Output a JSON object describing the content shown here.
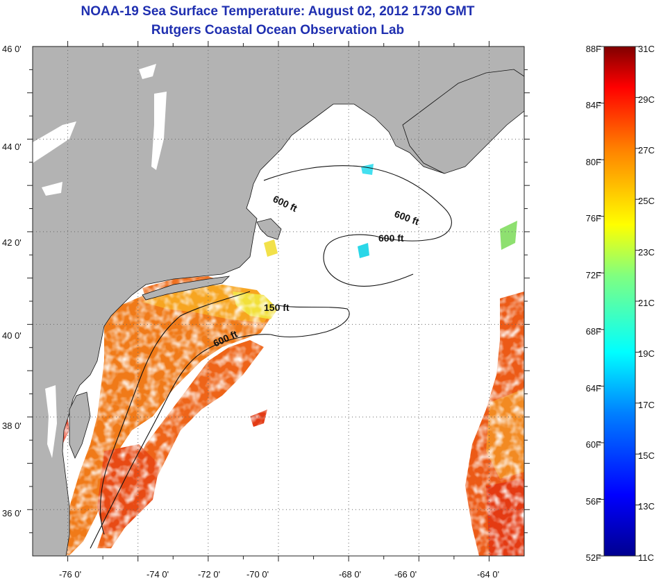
{
  "title": {
    "line1": "NOAA-19 Sea Surface Temperature:  August 02, 2012 1730 GMT",
    "line2": "Rutgers Coastal Ocean Observation Lab"
  },
  "map": {
    "lon_range": [
      -77.0,
      -63.0
    ],
    "lat_range": [
      35.0,
      46.0
    ],
    "lon_ticks": [
      "-76 0'",
      "-74 0'",
      "-72 0'",
      "-70 0'",
      "-68 0'",
      "-66 0'",
      "-64 0'"
    ],
    "lat_ticks": [
      "46 0'",
      "44 0'",
      "42 0'",
      "40 0'",
      "38 0'",
      "36 0'"
    ],
    "grid": "dotted",
    "land_color": "#b3b3b3",
    "no_data_color": "#ffffff",
    "contour_labels": [
      "600 ft",
      "600 ft",
      "600 ft",
      "150 ft",
      "600 ft"
    ]
  },
  "colorbar": {
    "fahrenheit_labels": [
      "88F",
      "84F",
      "80F",
      "76F",
      "72F",
      "68F",
      "64F",
      "60F",
      "56F",
      "52F"
    ],
    "celsius_labels": [
      "31C",
      "29C",
      "27C",
      "25C",
      "23C",
      "21C",
      "19C",
      "17C",
      "15C",
      "13C",
      "11C"
    ],
    "range_c": [
      11,
      31
    ],
    "colors_low_to_high": [
      "#00008f",
      "#0000ff",
      "#0080ff",
      "#00ffff",
      "#80ff80",
      "#ffff00",
      "#ff8000",
      "#ff0000",
      "#800000"
    ]
  }
}
